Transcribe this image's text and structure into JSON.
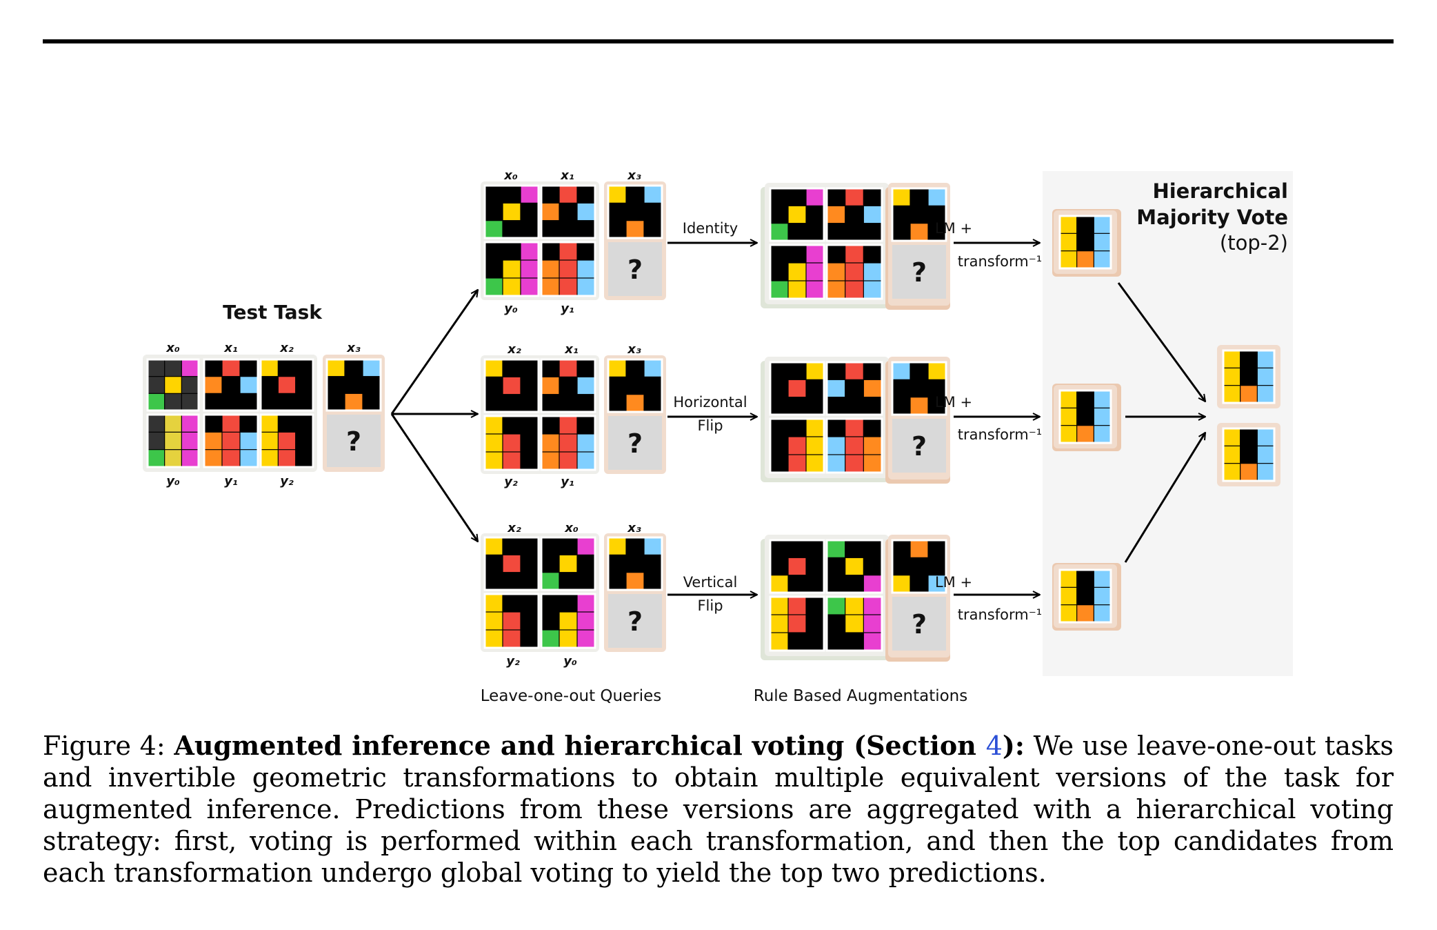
{
  "colors": {
    "black": "#000000",
    "gray": "#333333",
    "yellow": "#ffd400",
    "yellow_dim": "#e5d23e",
    "red": "#f24a3d",
    "orange": "#ff8a1f",
    "blue": "#80cfff",
    "green": "#3dc64a",
    "magenta": "#e83fd0",
    "query_bg": "#d9d9d9",
    "panel_bg": "#f5f5f5",
    "arrow": "#000000"
  },
  "test_task": {
    "title": "Test Task",
    "top_labels": [
      "x₀",
      "x₁",
      "x₂",
      "x₃"
    ],
    "bottom_labels": [
      "y₀",
      "y₁",
      "y₂"
    ]
  },
  "rows": [
    {
      "top_labels": [
        "x₀",
        "x₁",
        "x₃"
      ],
      "bottom_labels": [
        "y₀",
        "y₁"
      ],
      "transform_label_line1": "Identity",
      "transform_label_line2": "",
      "lm_line1": "LM +",
      "lm_line2": "transform⁻¹"
    },
    {
      "top_labels": [
        "x₂",
        "x₁",
        "x₃"
      ],
      "bottom_labels": [
        "y₂",
        "y₁"
      ],
      "transform_label_line1": "Horizontal",
      "transform_label_line2": "Flip",
      "lm_line1": "LM +",
      "lm_line2": "transform⁻¹"
    },
    {
      "top_labels": [
        "x₂",
        "x₀",
        "x₃"
      ],
      "bottom_labels": [
        "y₂",
        "y₀"
      ],
      "transform_label_line1": "Vertical",
      "transform_label_line2": "Flip",
      "lm_line1": "LM +",
      "lm_line2": "transform⁻¹"
    }
  ],
  "query_mark": "?",
  "section_labels": {
    "loo": "Leave-one-out Queries",
    "aug": "Rule Based Augmentations"
  },
  "vote": {
    "title_line1": "Hierarchical",
    "title_line2": "Majority Vote",
    "subtitle": "(top-2)"
  },
  "caption": {
    "prefix": "Figure 4: ",
    "bold_text": "Augmented inference and hierarchical voting (Section ",
    "ref": "4",
    "bold_end": "):",
    "body": " We use leave-one-out tasks and invertible geometric transformations to obtain multiple equivalent versions of the task for augmented inference. Predictions from these versions are aggregated with a hierarchical voting strategy: first, voting is performed within each transformation, and then the top candidates from each transformation undergo global voting to yield the top two predictions."
  }
}
